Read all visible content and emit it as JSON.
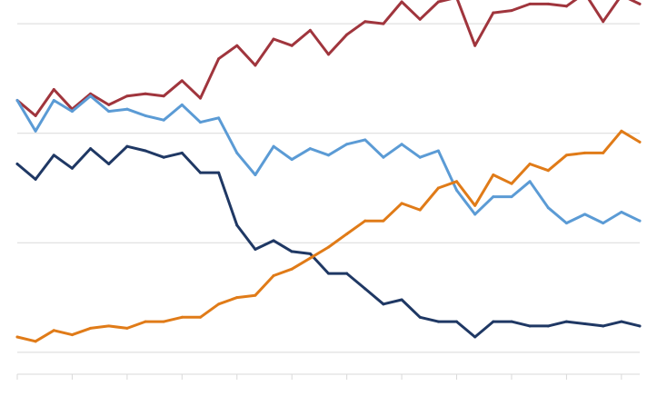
{
  "chart_data": {
    "type": "line",
    "title": "",
    "xlabel": "",
    "ylabel": "",
    "x": [
      1,
      2,
      3,
      4,
      5,
      6,
      7,
      8,
      9,
      10,
      11,
      12,
      13,
      14,
      15,
      16,
      17,
      18,
      19,
      20,
      21,
      22,
      23,
      24,
      25,
      26,
      27,
      28,
      29,
      30,
      31,
      32,
      33,
      34,
      35
    ],
    "ylim": [
      -10,
      160
    ],
    "gridlines": [
      0,
      50,
      100,
      150
    ],
    "grid": true,
    "legend": "none",
    "series": [
      {
        "color": "#A0353D",
        "values": [
          115,
          108,
          120,
          111,
          118,
          113,
          117,
          118,
          117,
          124,
          116,
          134,
          140,
          131,
          143,
          140,
          147,
          136,
          145,
          151,
          150,
          160,
          152,
          160,
          162,
          140,
          155,
          156,
          159,
          159,
          158,
          164,
          151,
          163,
          159
        ]
      },
      {
        "color": "#5B9BD5",
        "values": [
          115,
          101,
          115,
          110,
          117,
          110,
          111,
          108,
          106,
          113,
          105,
          107,
          91,
          81,
          94,
          88,
          93,
          90,
          95,
          97,
          89,
          95,
          89,
          92,
          74,
          63,
          71,
          71,
          78,
          66,
          59,
          63,
          59,
          64,
          60
        ]
      },
      {
        "color": "#1F3864",
        "values": [
          86,
          79,
          90,
          84,
          93,
          86,
          94,
          92,
          89,
          91,
          82,
          82,
          58,
          47,
          51,
          46,
          45,
          36,
          36,
          29,
          22,
          24,
          16,
          14,
          14,
          7,
          14,
          14,
          12,
          12,
          14,
          13,
          12,
          14,
          12
        ]
      },
      {
        "color": "#E07B18",
        "values": [
          7,
          5,
          10,
          8,
          11,
          12,
          11,
          14,
          14,
          16,
          16,
          22,
          25,
          26,
          35,
          38,
          43,
          48,
          54,
          60,
          60,
          68,
          65,
          75,
          78,
          67,
          81,
          77,
          86,
          83,
          90,
          91,
          91,
          101,
          96
        ]
      }
    ]
  }
}
